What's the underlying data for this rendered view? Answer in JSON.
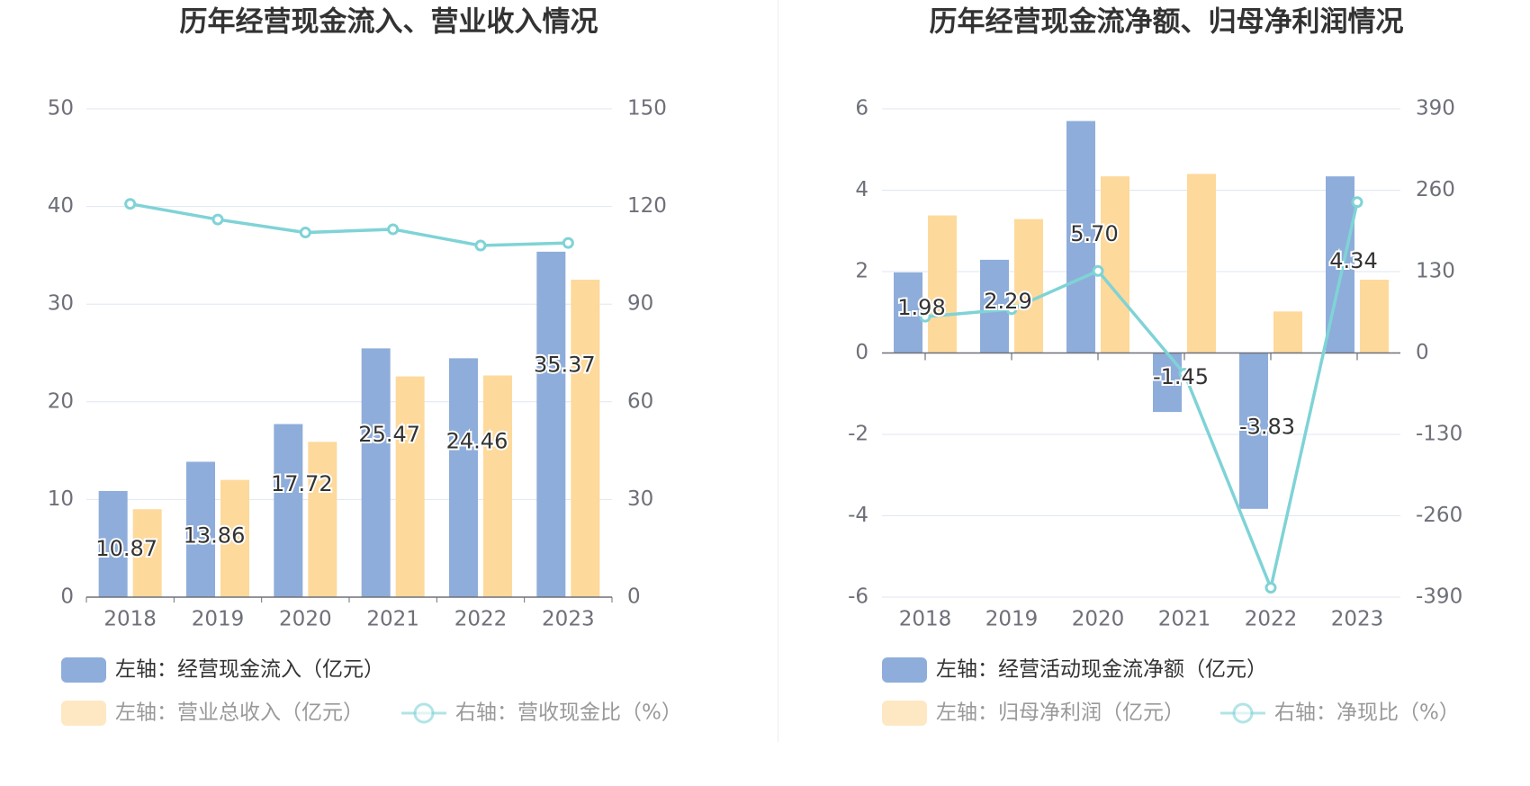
{
  "colors": {
    "blue": "#8eadda",
    "orange": "#fdd99b",
    "teal": "#7fd3d6",
    "grid": "#e0e6f1",
    "axis": "#6e7079"
  },
  "chart_data": [
    {
      "type": "bar",
      "title": "历年经营现金流入、营业收入情况",
      "categories": [
        "2018",
        "2019",
        "2020",
        "2021",
        "2022",
        "2023"
      ],
      "left_axis": {
        "min": 0,
        "max": 50,
        "ticks": [
          "0",
          "10",
          "20",
          "30",
          "40",
          "50"
        ]
      },
      "right_axis": {
        "min": 0,
        "max": 150,
        "ticks": [
          "0",
          "30",
          "60",
          "90",
          "120",
          "150"
        ]
      },
      "series": [
        {
          "name": "左轴：经营现金流入（亿元）",
          "type": "bar",
          "axis": "left",
          "color": "#8eadda",
          "values": [
            10.87,
            13.86,
            17.72,
            25.47,
            24.46,
            35.37
          ],
          "labels": [
            "10.87",
            "13.86",
            "17.72",
            "25.47",
            "24.46",
            "35.37"
          ]
        },
        {
          "name": "左轴：营业总收入（亿元）",
          "type": "bar",
          "axis": "left",
          "color": "#fdd99b",
          "values": [
            9.0,
            12.0,
            15.9,
            22.6,
            22.7,
            32.5
          ]
        },
        {
          "name": "右轴：营收现金比（%）",
          "type": "line",
          "axis": "right",
          "color": "#7fd3d6",
          "values": [
            120.8,
            116.0,
            112.0,
            113.0,
            108.0,
            108.8
          ]
        }
      ]
    },
    {
      "type": "bar",
      "title": "历年经营现金流净额、归母净利润情况",
      "categories": [
        "2018",
        "2019",
        "2020",
        "2021",
        "2022",
        "2023"
      ],
      "left_axis": {
        "min": -6,
        "max": 6,
        "ticks": [
          "-6",
          "-4",
          "-2",
          "0",
          "2",
          "4",
          "6"
        ]
      },
      "right_axis": {
        "min": -390,
        "max": 390,
        "ticks": [
          "-390",
          "-260",
          "-130",
          "0",
          "130",
          "260",
          "390"
        ]
      },
      "series": [
        {
          "name": "左轴：经营活动现金流净额（亿元）",
          "type": "bar",
          "axis": "left",
          "color": "#8eadda",
          "values": [
            1.98,
            2.29,
            5.7,
            -1.45,
            -3.83,
            4.34
          ],
          "labels": [
            "1.98",
            "2.29",
            "5.70",
            "-1.45",
            "-3.83",
            "4.34"
          ]
        },
        {
          "name": "左轴：归母净利润（亿元）",
          "type": "bar",
          "axis": "left",
          "color": "#fdd99b",
          "values": [
            3.38,
            3.29,
            4.34,
            4.4,
            1.02,
            1.8
          ]
        },
        {
          "name": "右轴：净现比（%）",
          "type": "line",
          "axis": "right",
          "color": "#7fd3d6",
          "values": [
            58,
            70,
            131,
            -33,
            -375,
            241
          ]
        }
      ]
    }
  ]
}
